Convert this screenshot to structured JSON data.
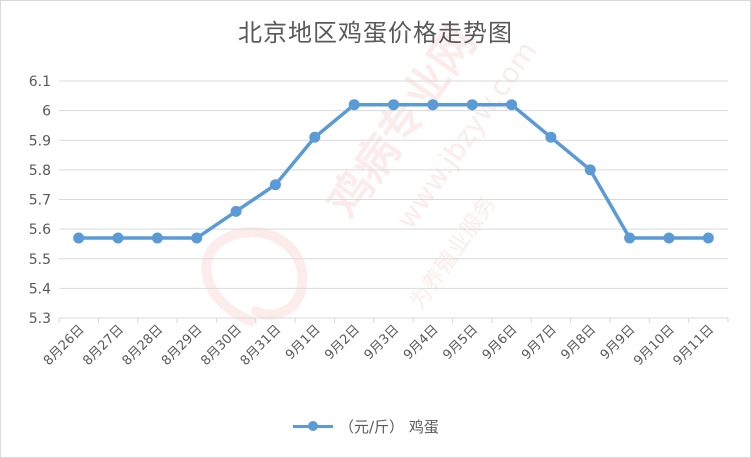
{
  "chart_data": {
    "type": "line",
    "title": "北京地区鸡蛋价格走势图",
    "xlabel": "",
    "ylabel": "",
    "categories": [
      "8月26日",
      "8月27日",
      "8月28日",
      "8月29日",
      "8月30日",
      "8月31日",
      "9月1日",
      "9月2日",
      "9月3日",
      "9月4日",
      "9月5日",
      "9月6日",
      "9月7日",
      "9月8日",
      "9月9日",
      "9月10日",
      "9月11日"
    ],
    "series": [
      {
        "name": "（元/斤） 鸡蛋",
        "values": [
          5.57,
          5.57,
          5.57,
          5.57,
          5.66,
          5.75,
          5.91,
          6.02,
          6.02,
          6.02,
          6.02,
          6.02,
          5.91,
          5.8,
          5.57,
          5.57,
          5.57
        ]
      }
    ],
    "yticks": [
      "5.3",
      "5.4",
      "5.5",
      "5.6",
      "5.7",
      "5.8",
      "5.9",
      "6",
      "6.1"
    ],
    "ylim": [
      5.3,
      6.1
    ],
    "grid": true,
    "legend_position": "bottom",
    "line_color": "#5b9bd5",
    "grid_color": "#d9d9d9",
    "text_color": "#595959"
  },
  "watermark": {
    "brand_text": "鸡病专业网",
    "url_text": "www.jbzyw.com",
    "slogan_text": "为养殖业服务",
    "color": "#e8776b"
  }
}
